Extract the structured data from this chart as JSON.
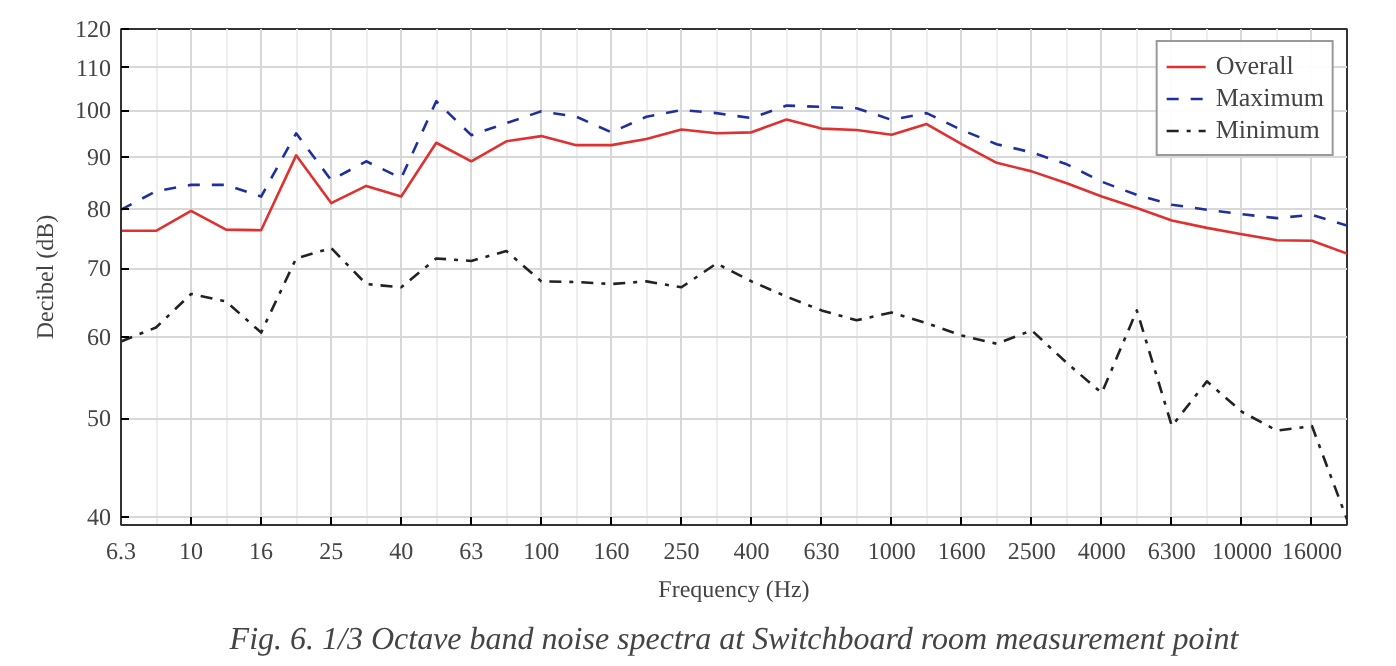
{
  "chart_data": {
    "type": "line",
    "title": "Fig. 6. 1/3 Octave band noise spectra at Switchboard room measurement point",
    "xlabel": "Frequency (Hz)",
    "ylabel": "Decibel (dB)",
    "categories": [
      "6.3",
      null,
      "10",
      null,
      "16",
      null,
      "25",
      null,
      "40",
      null,
      "63",
      null,
      "100",
      null,
      "160",
      null,
      "250",
      null,
      "400",
      null,
      "630",
      null,
      "1000",
      null,
      "1600",
      null,
      "2500",
      null,
      "4000",
      null,
      "6300",
      null,
      "10000",
      null,
      "16000",
      null
    ],
    "series": [
      {
        "name": "Overall",
        "color": "#e03030",
        "line_style": "solid",
        "values": [
          76.2,
          76.2,
          79.7,
          76.4,
          76.3,
          90.3,
          81.1,
          84.3,
          82.3,
          92.9,
          89.1,
          93.2,
          94.3,
          92.4,
          92.4,
          93.7,
          95.7,
          94.9,
          95.1,
          97.9,
          95.9,
          95.6,
          94.6,
          96.9,
          92.6,
          88.8,
          87.1,
          84.8,
          82.3,
          80.2,
          78.0,
          76.7,
          75.6,
          74.6,
          74.5,
          72.4
        ]
      },
      {
        "name": "Maximum",
        "color": "#1f2f9f",
        "line_style": "dashed",
        "values": [
          79.9,
          83.3,
          84.5,
          84.5,
          82.3,
          94.9,
          85.4,
          89.1,
          85.8,
          102.0,
          94.5,
          97.1,
          99.7,
          98.5,
          95.1,
          98.5,
          100.0,
          99.3,
          98.2,
          101.0,
          100.7,
          100.4,
          97.8,
          99.3,
          95.6,
          92.6,
          90.9,
          88.5,
          85.1,
          82.6,
          80.8,
          79.9,
          79.1,
          78.4,
          79.0,
          77.1
        ]
      },
      {
        "name": "Minimum",
        "color": "#222222",
        "line_style": "dashdot",
        "values": [
          59.4,
          61.3,
          66.1,
          65.0,
          60.6,
          71.6,
          73.3,
          67.6,
          67.1,
          71.6,
          71.2,
          72.8,
          68.0,
          67.9,
          67.6,
          68.0,
          67.1,
          70.8,
          68.0,
          65.7,
          63.7,
          62.3,
          63.4,
          61.9,
          60.2,
          59.1,
          60.9,
          56.6,
          52.9,
          63.7,
          49.1,
          54.3,
          50.7,
          48.6,
          49.1,
          39.8
        ]
      }
    ],
    "log": "y",
    "ylim": [
      39.3,
      120
    ],
    "yticks": [
      40,
      50,
      60,
      70,
      80,
      90,
      100,
      110,
      120
    ],
    "grid": true,
    "legend": "top right"
  }
}
